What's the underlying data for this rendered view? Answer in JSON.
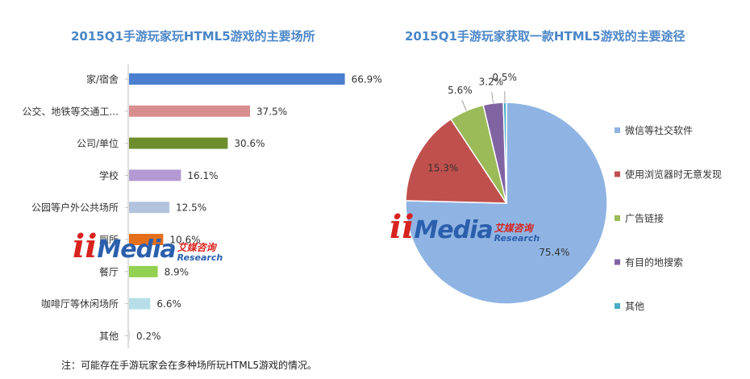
{
  "chart_data": [
    {
      "type": "bar",
      "title": "2015Q1手游玩家玩HTML5游戏的主要场所",
      "categories": [
        "家/宿舍",
        "公交、地铁等交通工...",
        "公司/单位",
        "学校",
        "公园等户外公共场所",
        "厕所",
        "餐厅",
        "咖啡厅等休闲场所",
        "其他"
      ],
      "values": [
        66.9,
        37.5,
        30.6,
        16.1,
        12.5,
        10.6,
        8.9,
        6.6,
        0.2
      ],
      "labels": [
        "66.9%",
        "37.5%",
        "30.6%",
        "16.1%",
        "12.5%",
        "10.6%",
        "8.9%",
        "6.6%",
        "0.2%"
      ],
      "colors": [
        "#4a7fd0",
        "#d98e8e",
        "#6e8e2e",
        "#b39ad3",
        "#b3c3de",
        "#e4701c",
        "#92d050",
        "#b7dee8",
        "#dddddd"
      ],
      "xlim": [
        0,
        100
      ]
    },
    {
      "type": "pie",
      "title": "2015Q1手游玩家获取一款HTML5游戏的主要途径",
      "categories": [
        "微信等社交软件",
        "使用浏览器时无意发现",
        "广告链接",
        "有目的地搜索",
        "其他"
      ],
      "values": [
        75.4,
        15.3,
        5.6,
        3.2,
        0.5
      ],
      "labels": [
        "75.4%",
        "15.3%",
        "5.6%",
        "3.2%",
        "0.5%"
      ],
      "colors": [
        "#8fb4e3",
        "#c0504d",
        "#9bbb59",
        "#8064a2",
        "#4bacc6"
      ],
      "legend": "right"
    }
  ],
  "watermark": {
    "ii": "ii",
    "media": "Media",
    "cn": "艾媒咨询",
    "en": "Research"
  },
  "footnote": "注：可能存在手游玩家会在多种场所玩HTML5游戏的情况。"
}
